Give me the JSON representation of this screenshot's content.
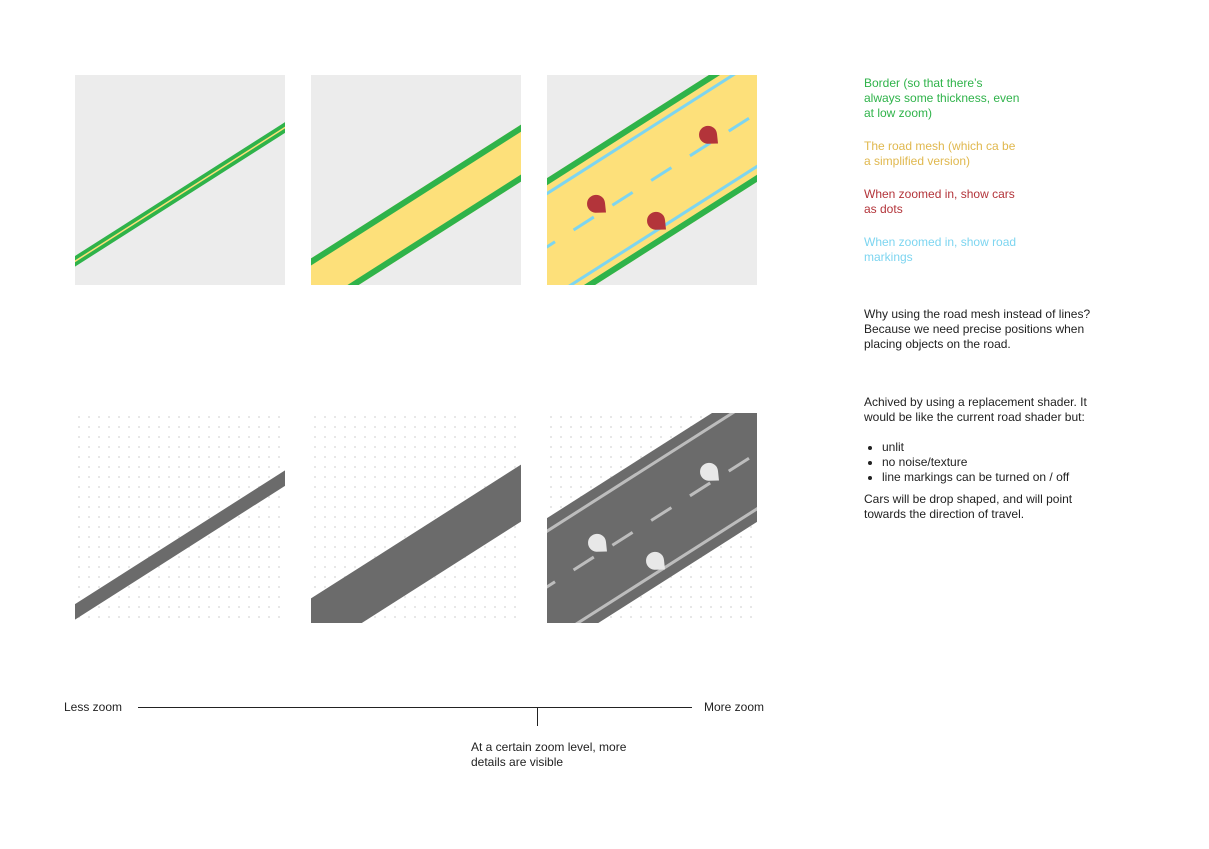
{
  "colors": {
    "border_green": "#2fb34a",
    "road_mesh_yellow": "#fde07a",
    "car_red": "#b3343a",
    "marking_blue": "#7dd5f0",
    "tile_background": "#ececec",
    "road_gray": "#6b6b6b",
    "car_white": "#e8e8e8",
    "dot_grid": "#e0e0e0"
  },
  "notes": {
    "border": "Border (so that there’s\nalways some thickness, even\nat low zoom)",
    "mesh": "The road mesh (which ca be\na simplified version)",
    "cars": "When zoomed in, show cars\nas dots",
    "markings": "When zoomed in, show road\nmarkings",
    "why": "Why using the road mesh instead of lines?\nBecause we need precise positions when\nplacing objects on the road.",
    "shader_intro": "Achived by using a replacement shader. It\nwould be like the current road shader but:",
    "shader_points": [
      "unlit",
      "no noise/texture",
      "line markings can be turned on / off"
    ],
    "cars_shape": "Cars will be drop shaped, and will point\ntowards the direction of travel."
  },
  "axis": {
    "left_label": "Less zoom",
    "right_label": "More zoom",
    "marker_caption": "At a certain zoom level, more\ndetails are visible"
  },
  "icons": [
    "car-drop-icon"
  ]
}
